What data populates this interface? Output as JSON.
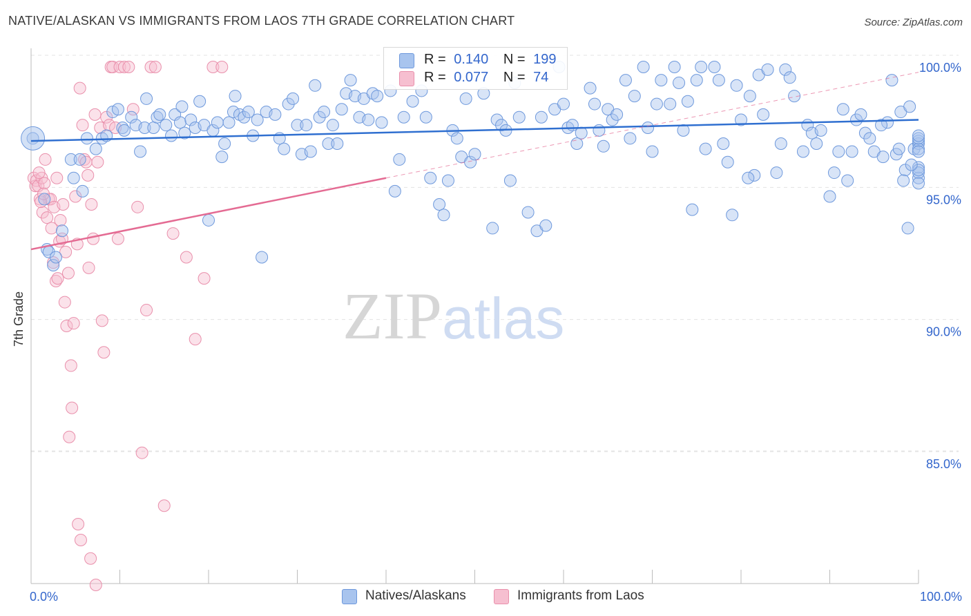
{
  "title": "NATIVE/ALASKAN VS IMMIGRANTS FROM LAOS 7TH GRADE CORRELATION CHART",
  "source": "Source: ZipAtlas.com",
  "watermark": {
    "zip": "ZIP",
    "atlas": "atlas"
  },
  "legend": {
    "r_label": "R =",
    "n_label": "N =",
    "series": [
      {
        "name": "Natives/Alaskans",
        "r": "0.140",
        "n": "199"
      },
      {
        "name": "Immigrants from Laos",
        "r": "0.077",
        "n": "74"
      }
    ]
  },
  "colors": {
    "blue_fill": "#a8c4ee",
    "blue_stroke": "#6d98dc",
    "blue_line": "#2f6fd0",
    "pink_fill": "#f6bfd0",
    "pink_stroke": "#e98fab",
    "pink_line": "#e46b93",
    "axis_label": "#3366cc",
    "grid": "#e3e3e3"
  },
  "chart_data": {
    "type": "scatter",
    "title": "NATIVE/ALASKAN VS IMMIGRANTS FROM LAOS 7TH GRADE CORRELATION CHART",
    "xlabel": "",
    "ylabel": "7th Grade",
    "xlim": [
      0,
      100
    ],
    "ylim": [
      80.5,
      100.6
    ],
    "x_tick_labels": [
      "0.0%",
      "100.0%"
    ],
    "y_ticks": [
      100,
      95,
      90,
      85
    ],
    "y_tick_labels": [
      "100.0%",
      "95.0%",
      "90.0%",
      "85.0%"
    ],
    "grid": true,
    "series": [
      {
        "name": "Natives/Alaskans",
        "trend": {
          "x": [
            0,
            100
          ],
          "y": [
            97.2,
            98.0
          ]
        },
        "points": [
          [
            0.2,
            97.3
          ],
          [
            1.5,
            95.0
          ],
          [
            1.8,
            93.1
          ],
          [
            2.0,
            93.0
          ],
          [
            2.5,
            92.5
          ],
          [
            2.8,
            92.8
          ],
          [
            3.5,
            93.8
          ],
          [
            4.5,
            96.5
          ],
          [
            4.8,
            95.8
          ],
          [
            5.5,
            96.5
          ],
          [
            5.8,
            95.3
          ],
          [
            6.3,
            97.3
          ],
          [
            7.3,
            96.9
          ],
          [
            8.0,
            97.3
          ],
          [
            8.5,
            97.4
          ],
          [
            9.2,
            98.3
          ],
          [
            9.8,
            98.4
          ],
          [
            10.3,
            97.7
          ],
          [
            10.5,
            97.6
          ],
          [
            11.3,
            98.1
          ],
          [
            11.8,
            97.8
          ],
          [
            12.3,
            96.8
          ],
          [
            12.8,
            97.7
          ],
          [
            13.0,
            98.8
          ],
          [
            13.8,
            97.7
          ],
          [
            14.2,
            98.1
          ],
          [
            14.5,
            98.2
          ],
          [
            15.2,
            97.8
          ],
          [
            15.8,
            97.4
          ],
          [
            16.2,
            98.2
          ],
          [
            16.8,
            97.9
          ],
          [
            17.0,
            98.5
          ],
          [
            17.3,
            97.5
          ],
          [
            18.0,
            98.0
          ],
          [
            18.5,
            97.7
          ],
          [
            19.0,
            98.7
          ],
          [
            19.5,
            97.8
          ],
          [
            20.0,
            94.2
          ],
          [
            20.5,
            97.6
          ],
          [
            21.0,
            97.9
          ],
          [
            21.5,
            96.6
          ],
          [
            21.8,
            97.1
          ],
          [
            22.3,
            97.9
          ],
          [
            22.8,
            98.3
          ],
          [
            23.0,
            98.9
          ],
          [
            23.5,
            98.2
          ],
          [
            24.0,
            98.1
          ],
          [
            24.5,
            98.3
          ],
          [
            25.0,
            97.4
          ],
          [
            25.5,
            98.0
          ],
          [
            26.0,
            92.8
          ],
          [
            26.5,
            98.3
          ],
          [
            27.5,
            98.2
          ],
          [
            28.0,
            97.3
          ],
          [
            28.5,
            96.9
          ],
          [
            29.0,
            98.6
          ],
          [
            29.5,
            98.8
          ],
          [
            30.0,
            97.8
          ],
          [
            30.5,
            96.7
          ],
          [
            31.0,
            97.8
          ],
          [
            31.5,
            96.8
          ],
          [
            32.0,
            99.3
          ],
          [
            32.5,
            98.1
          ],
          [
            33.0,
            98.3
          ],
          [
            33.5,
            97.1
          ],
          [
            34.0,
            97.8
          ],
          [
            34.5,
            97.1
          ],
          [
            35.0,
            98.4
          ],
          [
            35.5,
            99.0
          ],
          [
            36.0,
            99.5
          ],
          [
            36.5,
            98.9
          ],
          [
            37.0,
            98.1
          ],
          [
            37.5,
            98.8
          ],
          [
            38.0,
            98.0
          ],
          [
            38.5,
            99.0
          ],
          [
            39.0,
            98.9
          ],
          [
            39.5,
            97.9
          ],
          [
            40.5,
            99.1
          ],
          [
            41.0,
            95.3
          ],
          [
            41.5,
            96.5
          ],
          [
            42.0,
            98.1
          ],
          [
            42.5,
            99.5
          ],
          [
            43.0,
            98.7
          ],
          [
            44.0,
            99.1
          ],
          [
            44.5,
            98.1
          ],
          [
            45.0,
            95.8
          ],
          [
            46.0,
            94.8
          ],
          [
            46.5,
            94.4
          ],
          [
            47.0,
            95.7
          ],
          [
            47.5,
            97.6
          ],
          [
            48.0,
            97.3
          ],
          [
            48.5,
            96.6
          ],
          [
            49.0,
            98.8
          ],
          [
            49.5,
            96.4
          ],
          [
            50.0,
            96.7
          ],
          [
            51.0,
            99.0
          ],
          [
            52.0,
            93.9
          ],
          [
            52.5,
            98.0
          ],
          [
            53.0,
            97.8
          ],
          [
            53.5,
            97.6
          ],
          [
            54.0,
            95.7
          ],
          [
            54.5,
            99.4
          ],
          [
            55.0,
            98.1
          ],
          [
            56.0,
            94.5
          ],
          [
            57.0,
            93.8
          ],
          [
            57.5,
            98.1
          ],
          [
            58.0,
            94.0
          ],
          [
            59.0,
            98.4
          ],
          [
            59.5,
            100.0
          ],
          [
            60.0,
            98.6
          ],
          [
            60.5,
            97.7
          ],
          [
            61.0,
            97.8
          ],
          [
            61.5,
            97.1
          ],
          [
            62.0,
            97.5
          ],
          [
            63.0,
            99.2
          ],
          [
            63.5,
            98.6
          ],
          [
            64.0,
            97.6
          ],
          [
            64.5,
            97.0
          ],
          [
            65.0,
            98.4
          ],
          [
            65.5,
            98.0
          ],
          [
            66.0,
            98.2
          ],
          [
            67.0,
            99.5
          ],
          [
            67.5,
            97.3
          ],
          [
            68.0,
            98.9
          ],
          [
            69.0,
            100.0
          ],
          [
            69.5,
            97.7
          ],
          [
            70.0,
            96.8
          ],
          [
            70.5,
            98.6
          ],
          [
            71.0,
            99.5
          ],
          [
            72.0,
            98.6
          ],
          [
            72.5,
            100.0
          ],
          [
            73.0,
            99.4
          ],
          [
            73.5,
            97.6
          ],
          [
            74.0,
            98.7
          ],
          [
            74.5,
            94.6
          ],
          [
            75.0,
            99.5
          ],
          [
            75.5,
            100.0
          ],
          [
            76.0,
            96.9
          ],
          [
            77.0,
            100.0
          ],
          [
            77.5,
            99.5
          ],
          [
            78.0,
            97.1
          ],
          [
            78.5,
            96.4
          ],
          [
            79.0,
            94.4
          ],
          [
            79.5,
            99.3
          ],
          [
            80.0,
            98.0
          ],
          [
            81.0,
            98.9
          ],
          [
            81.5,
            95.9
          ],
          [
            82.0,
            99.7
          ],
          [
            82.5,
            98.2
          ],
          [
            83.0,
            99.9
          ],
          [
            84.0,
            96.0
          ],
          [
            84.5,
            97.1
          ],
          [
            85.0,
            99.9
          ],
          [
            85.5,
            99.6
          ],
          [
            86.0,
            98.9
          ],
          [
            87.0,
            96.8
          ],
          [
            87.5,
            97.8
          ],
          [
            88.0,
            97.5
          ],
          [
            88.5,
            97.1
          ],
          [
            89.0,
            97.6
          ],
          [
            90.0,
            95.1
          ],
          [
            90.5,
            96.0
          ],
          [
            91.0,
            96.8
          ],
          [
            91.5,
            98.4
          ],
          [
            92.0,
            95.7
          ],
          [
            92.5,
            96.8
          ],
          [
            93.0,
            98.0
          ],
          [
            93.5,
            98.2
          ],
          [
            94.0,
            97.5
          ],
          [
            94.5,
            97.3
          ],
          [
            95.0,
            96.8
          ],
          [
            96.0,
            96.6
          ],
          [
            96.5,
            97.9
          ],
          [
            97.0,
            99.5
          ],
          [
            98.0,
            98.3
          ],
          [
            98.5,
            96.1
          ],
          [
            99.0,
            98.5
          ],
          [
            99.5,
            96.9
          ],
          [
            100.0,
            97.1
          ],
          [
            97.5,
            96.7
          ],
          [
            98.8,
            93.9
          ],
          [
            80.8,
            95.8
          ],
          [
            95.8,
            97.8
          ],
          [
            100.5,
            97.2
          ],
          [
            101.5,
            96.9
          ],
          [
            102.0,
            97.3
          ],
          [
            102.5,
            96.2
          ],
          [
            103.0,
            95.8
          ],
          [
            103.2,
            96.0
          ],
          [
            101.0,
            95.6
          ],
          [
            101.8,
            96.1
          ],
          [
            102.3,
            96.8
          ],
          [
            103.5,
            97.4
          ],
          [
            98.3,
            95.7
          ],
          [
            99.2,
            96.3
          ],
          [
            97.8,
            96.9
          ]
        ]
      },
      {
        "name": "Immigrants from Laos",
        "trend": {
          "x": [
            0,
            40
          ],
          "y": [
            93.1,
            95.8
          ]
        },
        "points": [
          [
            0.3,
            95.8
          ],
          [
            0.5,
            95.5
          ],
          [
            0.6,
            95.7
          ],
          [
            0.8,
            95.5
          ],
          [
            1.0,
            95.0
          ],
          [
            1.2,
            95.8
          ],
          [
            1.3,
            94.5
          ],
          [
            1.5,
            95.6
          ],
          [
            1.8,
            94.3
          ],
          [
            2.0,
            95.0
          ],
          [
            2.2,
            95.0
          ],
          [
            2.5,
            92.6
          ],
          [
            2.8,
            91.9
          ],
          [
            3.0,
            92.0
          ],
          [
            3.2,
            93.4
          ],
          [
            3.5,
            93.5
          ],
          [
            3.8,
            91.1
          ],
          [
            4.0,
            90.2
          ],
          [
            4.2,
            92.2
          ],
          [
            4.5,
            88.7
          ],
          [
            4.8,
            90.3
          ],
          [
            5.0,
            95.1
          ],
          [
            5.2,
            93.3
          ],
          [
            5.5,
            99.2
          ],
          [
            5.8,
            97.8
          ],
          [
            6.0,
            96.5
          ],
          [
            6.2,
            96.4
          ],
          [
            6.5,
            92.4
          ],
          [
            6.8,
            94.8
          ],
          [
            7.0,
            93.5
          ],
          [
            7.2,
            98.2
          ],
          [
            7.5,
            96.4
          ],
          [
            7.8,
            97.7
          ],
          [
            8.0,
            90.4
          ],
          [
            8.2,
            89.2
          ],
          [
            8.5,
            98.1
          ],
          [
            8.8,
            97.8
          ],
          [
            9.0,
            100.0
          ],
          [
            9.2,
            100.0
          ],
          [
            9.5,
            97.7
          ],
          [
            9.8,
            93.5
          ],
          [
            10.0,
            100.0
          ],
          [
            10.5,
            100.0
          ],
          [
            11.0,
            100.0
          ],
          [
            11.5,
            98.4
          ],
          [
            12.0,
            94.7
          ],
          [
            12.5,
            85.4
          ],
          [
            13.0,
            90.8
          ],
          [
            13.5,
            100.0
          ],
          [
            14.0,
            100.0
          ],
          [
            15.0,
            83.4
          ],
          [
            16.0,
            93.7
          ],
          [
            17.5,
            92.8
          ],
          [
            18.5,
            89.7
          ],
          [
            19.5,
            92.0
          ],
          [
            20.5,
            100.0
          ],
          [
            21.5,
            100.0
          ],
          [
            2.3,
            93.9
          ],
          [
            2.6,
            94.7
          ],
          [
            3.3,
            94.2
          ],
          [
            4.3,
            86.0
          ],
          [
            4.6,
            87.1
          ],
          [
            5.3,
            82.7
          ],
          [
            5.6,
            82.1
          ],
          [
            6.7,
            81.4
          ],
          [
            7.3,
            80.4
          ],
          [
            3.9,
            93.0
          ],
          [
            2.9,
            95.8
          ],
          [
            1.6,
            96.5
          ],
          [
            0.9,
            96.0
          ],
          [
            1.1,
            94.9
          ],
          [
            1.4,
            95.2
          ],
          [
            3.6,
            94.8
          ],
          [
            6.4,
            95.9
          ]
        ]
      }
    ]
  }
}
